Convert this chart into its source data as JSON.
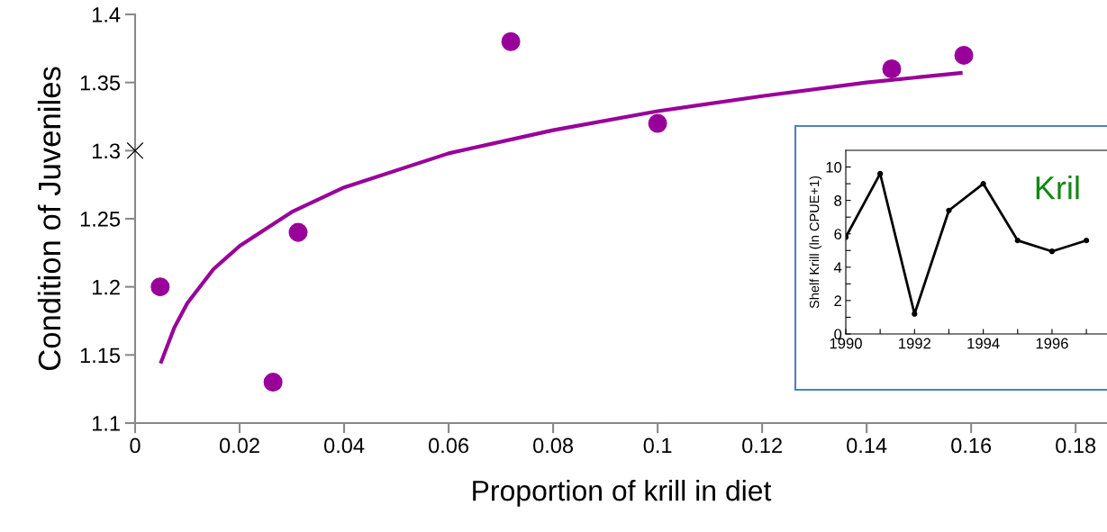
{
  "chart_data": [
    {
      "type": "scatter",
      "xlabel": "Proportion of krill in diet",
      "ylabel": "Condition of Juveniles",
      "xlim": [
        0,
        0.186
      ],
      "xticks": [
        0,
        0.02,
        0.04,
        0.06,
        0.08,
        0.1,
        0.12,
        0.14,
        0.16,
        0.18
      ],
      "ylim": [
        1.1,
        1.4
      ],
      "yticks": [
        1.1,
        1.15,
        1.2,
        1.25,
        1.3,
        1.35,
        1.4
      ],
      "grid": false,
      "legend": false,
      "series": [
        {
          "type": "scatter",
          "marker": "circle",
          "color": "#990099",
          "x": [
            0.0048,
            0.0264,
            0.0312,
            0.0719,
            0.1,
            0.1448,
            0.1586
          ],
          "values": [
            1.2,
            1.13,
            1.24,
            1.38,
            1.32,
            1.36,
            1.37
          ]
        },
        {
          "type": "line",
          "marker": "none",
          "line_style": "solid",
          "color": "#990099",
          "x": [
            0.005,
            0.0075,
            0.01,
            0.015,
            0.02,
            0.03,
            0.04,
            0.06,
            0.08,
            0.1,
            0.12,
            0.14,
            0.158
          ],
          "values": [
            1.145,
            1.17,
            1.188,
            1.213,
            1.23,
            1.255,
            1.273,
            1.298,
            1.315,
            1.329,
            1.34,
            1.35,
            1.357
          ]
        },
        {
          "type": "scatter",
          "marker": "cross",
          "color": "#000000",
          "x": [
            0
          ],
          "values": [
            1.3
          ]
        }
      ]
    },
    {
      "type": "line",
      "ylabel": "Shelf Krill (ln CPUE+1)",
      "marker": "circle",
      "line_style": "solid",
      "color": "#000000",
      "grid": false,
      "x": [
        1990,
        1991,
        1992,
        1993,
        1994,
        1995,
        1996,
        1997
      ],
      "values": [
        5.8,
        9.6,
        1.2,
        7.4,
        9.0,
        5.6,
        4.95,
        5.6
      ],
      "xlim": [
        1990,
        1997.6
      ],
      "xticks": [
        1990,
        {
          "value": 1991,
          "label": null
        },
        1992,
        {
          "value": 1993,
          "label": null
        },
        1994,
        {
          "value": 1995,
          "label": null
        },
        1996,
        {
          "value": 1997,
          "label": null
        }
      ],
      "ylim": [
        0,
        11
      ],
      "yticks": [
        0,
        {
          "value": 1,
          "label": null
        },
        2,
        {
          "value": 3,
          "label": null
        },
        4,
        {
          "value": 5,
          "label": null
        },
        6,
        {
          "value": 7,
          "label": null
        },
        8,
        {
          "value": 9,
          "label": null
        },
        10
      ],
      "annotations": [
        "Kril"
      ]
    }
  ]
}
